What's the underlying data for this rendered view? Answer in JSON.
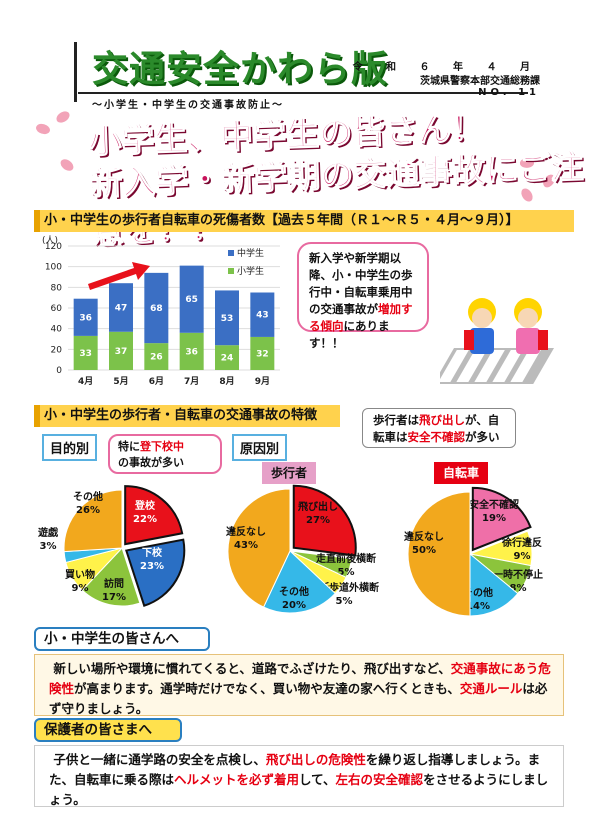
{
  "header": {
    "masthead": "交通安全かわら版",
    "subtitle": "～小学生・中学生の交通事故防止～",
    "date": "令 和 ６ 年 ４ 月",
    "org": "茨城県警察本部交通総務課",
    "issue": "NO. 11"
  },
  "headline": {
    "line1": "小学生、中学生の皆さん！",
    "line2": "新入学・新学期の交通事故にご注意を！！"
  },
  "section1": {
    "title": "小・中学生の歩行者自転車の死傷者数【過去５年間（Ｒ１～Ｒ５・４月～９月）】",
    "bubble": {
      "text1": "新入学や新学期以降、小・中学生の歩行中・自転車乗用中の交通事故が",
      "highlight": "増加する傾向",
      "text2": "にあります！！"
    }
  },
  "chart_data": {
    "type": "bar",
    "stacked": true,
    "ylabel": "(人)",
    "ylim": [
      0,
      120
    ],
    "yticks": [
      0,
      20,
      40,
      60,
      80,
      100,
      120
    ],
    "categories": [
      "4月",
      "5月",
      "6月",
      "7月",
      "8月",
      "9月"
    ],
    "series": [
      {
        "name": "小学生",
        "color": "#7cc24a",
        "values": [
          33,
          37,
          26,
          36,
          24,
          32
        ]
      },
      {
        "name": "中学生",
        "color": "#3b6fc4",
        "values": [
          36,
          47,
          68,
          65,
          53,
          43
        ]
      }
    ],
    "legend_position": "top-right",
    "grid": true
  },
  "section2": {
    "title": "小・中学生の歩行者・自転車の交通事故の特徴",
    "callout": {
      "text1": "歩行者は",
      "hl1": "飛び出し",
      "text2": "が、自転車は",
      "hl2": "安全不確認",
      "text3": "が多い"
    },
    "purpose": {
      "tag": "目的別",
      "bubble": {
        "text1": "特に",
        "hl": "登下校中",
        "text2": "の事故が多い"
      },
      "slices": [
        {
          "label": "登校",
          "pct": "22%",
          "value": 22,
          "color": "#e8111b"
        },
        {
          "label": "下校",
          "pct": "23%",
          "value": 23,
          "color": "#2a6fc4"
        },
        {
          "label": "訪問",
          "pct": "17%",
          "value": 17,
          "color": "#8cc43c"
        },
        {
          "label": "買い物",
          "pct": "9%",
          "value": 9,
          "color": "#fff24a"
        },
        {
          "label": "遊戯",
          "pct": "3%",
          "value": 3,
          "color": "#35b8e8"
        },
        {
          "label": "その他",
          "pct": "26%",
          "value": 26,
          "color": "#f2a81d"
        }
      ]
    },
    "cause": {
      "tag": "原因別",
      "pedestrian": {
        "label": "歩行者",
        "slices": [
          {
            "label": "飛び出し",
            "pct": "27%",
            "value": 27,
            "color": "#e8111b"
          },
          {
            "label": "走直前後横断",
            "pct": "5%",
            "value": 5,
            "color": "#8cc43c"
          },
          {
            "label": "横断歩道外横断",
            "pct": "5%",
            "value": 5,
            "color": "#fff24a"
          },
          {
            "label": "その他",
            "pct": "20%",
            "value": 20,
            "color": "#35b8e8"
          },
          {
            "label": "違反なし",
            "pct": "43%",
            "value": 43,
            "color": "#f2a81d"
          }
        ]
      },
      "bicycle": {
        "label": "自転車",
        "slices": [
          {
            "label": "安全不確認",
            "pct": "19%",
            "value": 19,
            "color": "#ef6fa8"
          },
          {
            "label": "徐行違反",
            "pct": "9%",
            "value": 9,
            "color": "#fff24a"
          },
          {
            "label": "一時不停止",
            "pct": "8%",
            "value": 8,
            "color": "#8cc43c"
          },
          {
            "label": "その他",
            "pct": "14%",
            "value": 14,
            "color": "#35b8e8"
          },
          {
            "label": "違反なし",
            "pct": "50%",
            "value": 50,
            "color": "#f2a81d"
          }
        ]
      }
    }
  },
  "kids_message": {
    "heading": "小・中学生の皆さんへ",
    "t1": "新しい場所や環境に慣れてくると、道路でふざけたり、飛び出すなど、",
    "hl1": "交通事故にあう危険性",
    "t2": "が高まります。通学時だけでなく、買い物や友達の家へ行くときも、",
    "hl2": "交通ルール",
    "t3": "は必ず守りましょう。"
  },
  "parents_message": {
    "heading": "保護者の皆さまへ",
    "t1": "子供と一緒に通学路の安全を点検し、",
    "hl1": "飛び出しの危険性",
    "t2": "を繰り返し指導しましょう。また、自転車に乗る際は",
    "hl2": "ヘルメットを必ず着用",
    "t3": "して、",
    "hl3": "左右の安全確認",
    "t4": "をさせるようにしましょう。"
  }
}
